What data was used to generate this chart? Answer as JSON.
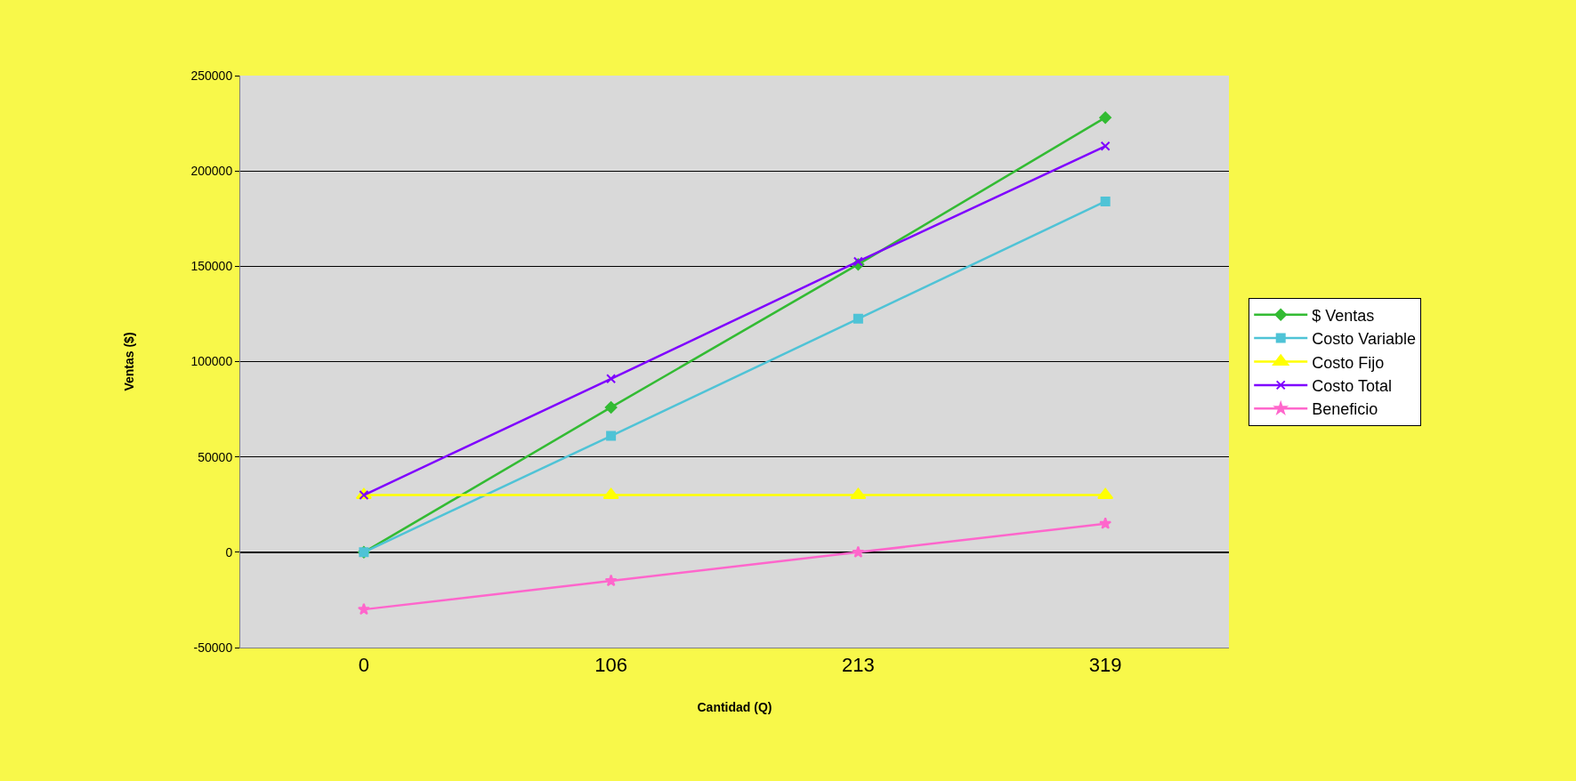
{
  "chart_data": {
    "type": "line",
    "xlabel": "Cantidad (Q)",
    "ylabel": "Ventas ($)",
    "categories": [
      "0",
      "106",
      "213",
      "319"
    ],
    "series": [
      {
        "name": "$ Ventas",
        "color": "#33bb33",
        "marker": "diamond",
        "values": [
          0,
          76000,
          151000,
          228000
        ]
      },
      {
        "name": "Costo Variable",
        "color": "#4fc3d6",
        "marker": "square",
        "values": [
          0,
          61000,
          122500,
          184000
        ]
      },
      {
        "name": "Costo Fijo",
        "color": "#ffff00",
        "marker": "triangle",
        "values": [
          30000,
          30000,
          30000,
          30000
        ]
      },
      {
        "name": "Costo Total",
        "color": "#7f00ff",
        "marker": "cross",
        "values": [
          30000,
          91000,
          152500,
          213000
        ]
      },
      {
        "name": "Beneficio",
        "color": "#ff66cc",
        "marker": "star",
        "values": [
          -30000,
          -15000,
          0,
          15000
        ]
      }
    ],
    "ylim": [
      -50000,
      250000
    ],
    "yticks": [
      -50000,
      0,
      50000,
      100000,
      150000,
      200000,
      250000
    ],
    "grid": "y",
    "legend": "right"
  }
}
